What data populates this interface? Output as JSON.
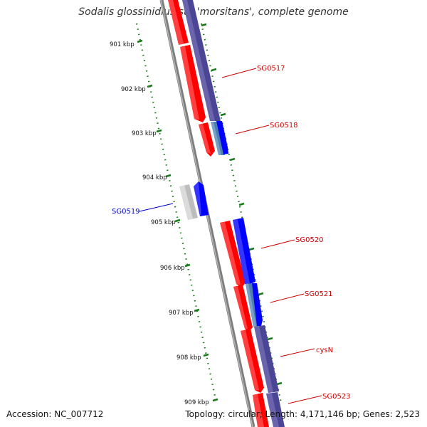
{
  "title": "Sodalis glossinidius str. 'morsitans', complete genome",
  "footer": {
    "accession": "Accession: NC_007712",
    "summary": "Topology: circular; Length: 4,171,146 bp; Genes: 2,523"
  },
  "scale_labels": [
    "901 kbp",
    "902 kbp",
    "903 kbp",
    "904 kbp",
    "905 kbp",
    "906 kbp",
    "907 kbp",
    "908 kbp",
    "909 kbp"
  ],
  "gene_labels": {
    "SG0517": "SG0517",
    "SG0518": "SG0518",
    "SG0519": "SG0519",
    "SG0520": "SG0520",
    "SG0521": "SG0521",
    "cysN": "cysN",
    "SG0523": "SG0523"
  },
  "colors": {
    "red_feature": "#ff0000",
    "blue_feature": "#0000ff",
    "navy_feature": "#4b4596",
    "steel_feature": "#4f7fb0",
    "grey_feature": "#bdbdbd",
    "tick_green": "#1a7a1a",
    "backbone": "#888888",
    "label_red": "#cc0000",
    "label_blue": "#0000cc"
  }
}
